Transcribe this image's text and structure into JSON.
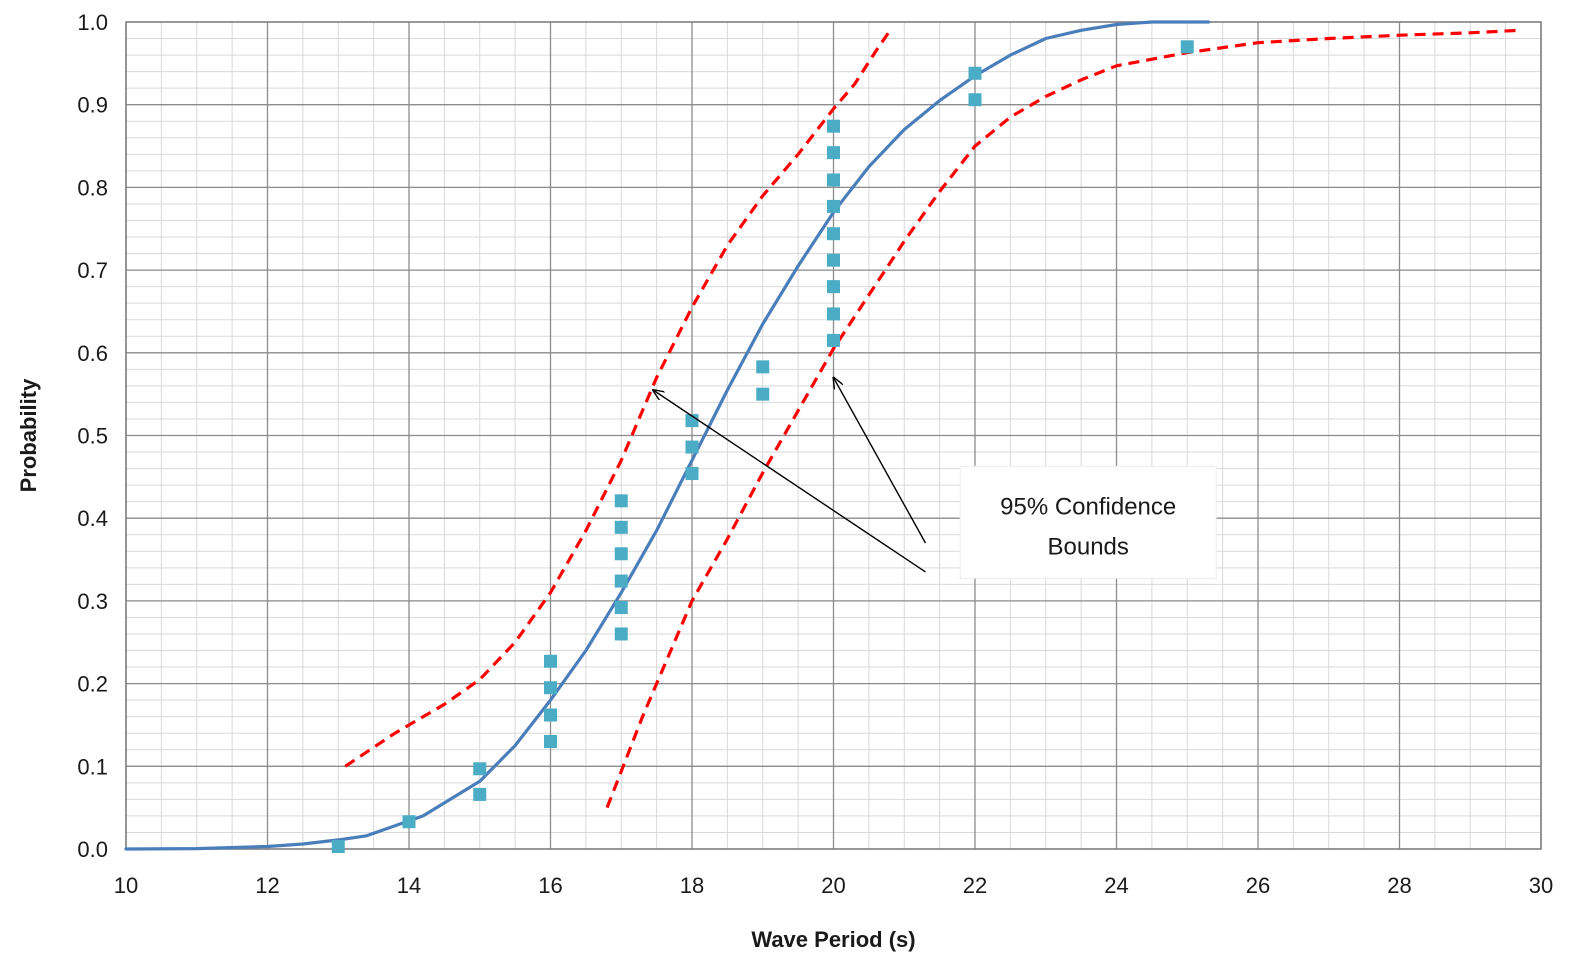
{
  "chart_data": {
    "type": "scatter",
    "title": "",
    "xlabel": "Wave Period (s)",
    "ylabel": "Probability",
    "xlim": [
      10,
      30
    ],
    "ylim": [
      0,
      1.0
    ],
    "x_ticks": [
      10,
      12,
      14,
      16,
      18,
      20,
      22,
      24,
      26,
      28,
      30
    ],
    "y_ticks": [
      "0.0",
      "0.1",
      "0.2",
      "0.3",
      "0.4",
      "0.5",
      "0.6",
      "0.7",
      "0.8",
      "0.9",
      "1.0"
    ],
    "grid": {
      "major": true,
      "minor": true,
      "x_minor_step": 0.5,
      "y_minor_step": 0.02
    },
    "legend": "none",
    "series": [
      {
        "kind": "markers",
        "marker": "square",
        "color": "#4bacc6",
        "points": [
          [
            13,
            0.003
          ],
          [
            14,
            0.033
          ],
          [
            15,
            0.066
          ],
          [
            15,
            0.097
          ],
          [
            16,
            0.13
          ],
          [
            16,
            0.162
          ],
          [
            16,
            0.195
          ],
          [
            16,
            0.227
          ],
          [
            17,
            0.26
          ],
          [
            17,
            0.292
          ],
          [
            17,
            0.324
          ],
          [
            17,
            0.357
          ],
          [
            17,
            0.389
          ],
          [
            17,
            0.421
          ],
          [
            18,
            0.454
          ],
          [
            18,
            0.486
          ],
          [
            18,
            0.518
          ],
          [
            19,
            0.55
          ],
          [
            19,
            0.583
          ],
          [
            20,
            0.615
          ],
          [
            20,
            0.647
          ],
          [
            20,
            0.68
          ],
          [
            20,
            0.712
          ],
          [
            20,
            0.744
          ],
          [
            20,
            0.777
          ],
          [
            20,
            0.809
          ],
          [
            20,
            0.842
          ],
          [
            20,
            0.874
          ],
          [
            22,
            0.906
          ],
          [
            22,
            0.938
          ],
          [
            25,
            0.97
          ]
        ]
      },
      {
        "kind": "line",
        "style": "solid",
        "color": "#4a7ebb",
        "points": [
          [
            10,
            0.0
          ],
          [
            11,
            0.0005
          ],
          [
            12,
            0.003
          ],
          [
            12.5,
            0.006
          ],
          [
            13,
            0.011
          ],
          [
            13.4,
            0.016
          ],
          [
            14.2,
            0.04
          ],
          [
            15,
            0.082
          ],
          [
            15.5,
            0.125
          ],
          [
            16,
            0.18
          ],
          [
            16.5,
            0.24
          ],
          [
            17,
            0.31
          ],
          [
            17.5,
            0.385
          ],
          [
            18,
            0.47
          ],
          [
            18.5,
            0.555
          ],
          [
            19,
            0.635
          ],
          [
            19.5,
            0.705
          ],
          [
            20,
            0.77
          ],
          [
            20.5,
            0.825
          ],
          [
            21,
            0.87
          ],
          [
            21.5,
            0.905
          ],
          [
            22,
            0.935
          ],
          [
            22.5,
            0.96
          ],
          [
            23,
            0.98
          ],
          [
            23.5,
            0.99
          ],
          [
            24,
            0.997
          ],
          [
            24.5,
            1.0
          ],
          [
            25.3,
            1.0
          ]
        ]
      },
      {
        "kind": "line",
        "style": "dashed",
        "color": "#ff0000",
        "points": [
          [
            13.1,
            0.1
          ],
          [
            13.8,
            0.14
          ],
          [
            14.5,
            0.175
          ],
          [
            15,
            0.205
          ],
          [
            15.5,
            0.25
          ],
          [
            16,
            0.31
          ],
          [
            16.5,
            0.385
          ],
          [
            17,
            0.47
          ],
          [
            17.5,
            0.57
          ],
          [
            18,
            0.655
          ],
          [
            18.5,
            0.73
          ],
          [
            19,
            0.79
          ],
          [
            19.5,
            0.84
          ],
          [
            20,
            0.895
          ],
          [
            20.3,
            0.925
          ],
          [
            20.6,
            0.965
          ],
          [
            20.8,
            0.99
          ]
        ]
      },
      {
        "kind": "line",
        "style": "dashed",
        "color": "#ff0000",
        "points": [
          [
            16.8,
            0.05
          ],
          [
            17.3,
            0.16
          ],
          [
            18,
            0.3
          ],
          [
            18.5,
            0.375
          ],
          [
            19,
            0.455
          ],
          [
            19.5,
            0.53
          ],
          [
            20,
            0.605
          ],
          [
            20.5,
            0.67
          ],
          [
            21,
            0.735
          ],
          [
            21.5,
            0.795
          ],
          [
            22,
            0.85
          ],
          [
            22.5,
            0.885
          ],
          [
            23,
            0.91
          ],
          [
            23.5,
            0.93
          ],
          [
            24,
            0.947
          ],
          [
            25,
            0.963
          ],
          [
            26,
            0.975
          ],
          [
            27,
            0.98
          ],
          [
            28,
            0.984
          ],
          [
            29,
            0.987
          ],
          [
            29.7,
            0.99
          ]
        ]
      }
    ],
    "annotations": [
      {
        "text_lines": [
          "95% Confidence",
          "Bounds"
        ],
        "box_anchor": [
          23.6,
          0.395
        ],
        "arrows": [
          {
            "from": [
              21.3,
              0.335
            ],
            "to": [
              17.45,
              0.555
            ]
          },
          {
            "from": [
              21.3,
              0.37
            ],
            "to": [
              20.0,
              0.57
            ]
          }
        ]
      }
    ]
  }
}
